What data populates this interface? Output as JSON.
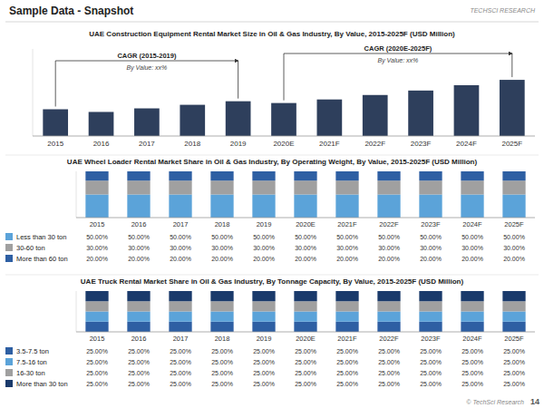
{
  "title": "Sample Data - Snapshot",
  "annotations": [
    {
      "text": "TECHSCI RESEARCH"
    },
    {
      "text": "© TechSci Research"
    },
    {
      "text": "14"
    }
  ],
  "chart_data": [
    {
      "type": "bar",
      "title": "UAE Construction Equipment Rental Market Size in Oil & Gas Industry, By Value, 2015-2025F (USD Million)",
      "categories": [
        "2015",
        "2016",
        "2017",
        "2018",
        "2019",
        "2020E",
        "2021F",
        "2022F",
        "2023F",
        "2024F",
        "2025F"
      ],
      "values": [
        3.0,
        2.7,
        3.1,
        3.5,
        3.9,
        3.7,
        4.1,
        4.6,
        5.1,
        5.7,
        6.3
      ],
      "color": "#2e3f5c",
      "ylim": [
        0,
        9.765
      ],
      "tick_labels": "x",
      "grid": false,
      "annotations": [
        {
          "text": "CAGR (2015-2019)",
          "sub": "By Value: xx%",
          "from": "2015",
          "to": "2019"
        },
        {
          "text": "CAGR (2020E-2025F)",
          "sub": "By Value: xx%",
          "from": "2020E",
          "to": "2025F"
        }
      ]
    },
    {
      "type": "bar",
      "stacked": true,
      "title": "UAE Wheel Loader Rental Market Share in Oil & Gas Industry, By Operating Weight, By Value, 2015-2025F (USD Million)",
      "categories": [
        "2015",
        "2016",
        "2017",
        "2018",
        "2019",
        "2020E",
        "2021F",
        "2022F",
        "2023F",
        "2024F",
        "2025F"
      ],
      "series": [
        {
          "name": "Less than 30 ton",
          "color": "#5ba3d9",
          "values": [
            50.0,
            50.0,
            50.0,
            50.0,
            50.0,
            50.0,
            50.0,
            50.0,
            50.0,
            50.0,
            50.0
          ],
          "value_labels": [
            "50.00%",
            "50.00%",
            "50.00%",
            "50.00%",
            "50.00%",
            "50.00%",
            "50.00%",
            "50.00%",
            "50.00%",
            "50.00%",
            "50.00%"
          ]
        },
        {
          "name": "30-60 ton",
          "color": "#a0a0a0",
          "values": [
            30.0,
            30.0,
            30.0,
            30.0,
            30.0,
            30.0,
            30.0,
            30.0,
            30.0,
            30.0,
            30.0
          ],
          "value_labels": [
            "30.00%",
            "30.00%",
            "30.00%",
            "30.00%",
            "30.00%",
            "30.00%",
            "30.00%",
            "30.00%",
            "30.00%",
            "30.00%",
            "30.00%"
          ]
        },
        {
          "name": "More than 60 ton",
          "color": "#2e5fa3",
          "values": [
            20.0,
            20.0,
            20.0,
            20.0,
            20.0,
            20.0,
            20.0,
            20.0,
            20.0,
            20.0,
            20.0
          ],
          "value_labels": [
            "20.00%",
            "20.00%",
            "20.00%",
            "20.00%",
            "20.00%",
            "20.00%",
            "20.00%",
            "20.00%",
            "20.00%",
            "20.00%",
            "20.00%"
          ]
        }
      ],
      "ylim": [
        0,
        100
      ],
      "tick_labels": "x",
      "grid": false,
      "legend": "bottom"
    },
    {
      "type": "bar",
      "stacked": true,
      "title": "UAE Truck Rental Market Share in Oil & Gas Industry, By Tonnage Capacity, By Value, 2015-2025F (USD Million)",
      "categories": [
        "2015",
        "2016",
        "2017",
        "2018",
        "2019",
        "2020E",
        "2021F",
        "2022F",
        "2023F",
        "2024F",
        "2025F"
      ],
      "series": [
        {
          "name": "3.5-7.5 ton",
          "color": "#2e5fa3",
          "values": [
            25.0,
            25.0,
            25.0,
            25.0,
            25.0,
            25.0,
            25.0,
            25.0,
            25.0,
            25.0,
            25.0
          ],
          "value_labels": [
            "25.00%",
            "25.00%",
            "25.00%",
            "25.00%",
            "25.00%",
            "25.00%",
            "25.00%",
            "25.00%",
            "25.00%",
            "25.00%",
            "25.00%"
          ]
        },
        {
          "name": "7.5-16 ton",
          "color": "#5ba3d9",
          "values": [
            25.0,
            25.0,
            25.0,
            25.0,
            25.0,
            25.0,
            25.0,
            25.0,
            25.0,
            25.0,
            25.0
          ],
          "value_labels": [
            "25.00%",
            "25.00%",
            "25.00%",
            "25.00%",
            "25.00%",
            "25.00%",
            "25.00%",
            "25.00%",
            "25.00%",
            "25.00%",
            "25.00%"
          ]
        },
        {
          "name": "16-30 ton",
          "color": "#a0a0a0",
          "values": [
            25.0,
            25.0,
            25.0,
            25.0,
            25.0,
            25.0,
            25.0,
            25.0,
            25.0,
            25.0,
            25.0
          ],
          "value_labels": [
            "25.00%",
            "25.00%",
            "25.00%",
            "25.00%",
            "25.00%",
            "25.00%",
            "25.00%",
            "25.00%",
            "25.00%",
            "25.00%",
            "25.00%"
          ]
        },
        {
          "name": "More than 30 ton",
          "color": "#1a3a6b",
          "values": [
            25.0,
            25.0,
            25.0,
            25.0,
            25.0,
            25.0,
            25.0,
            25.0,
            25.0,
            25.0,
            25.0
          ],
          "value_labels": [
            "25.00%",
            "25.00%",
            "25.00%",
            "25.00%",
            "25.00%",
            "25.00%",
            "25.00%",
            "25.00%",
            "25.00%",
            "25.00%",
            "25.00%"
          ]
        }
      ],
      "ylim": [
        0,
        100
      ],
      "tick_labels": "x",
      "grid": false,
      "legend": "bottom"
    }
  ]
}
